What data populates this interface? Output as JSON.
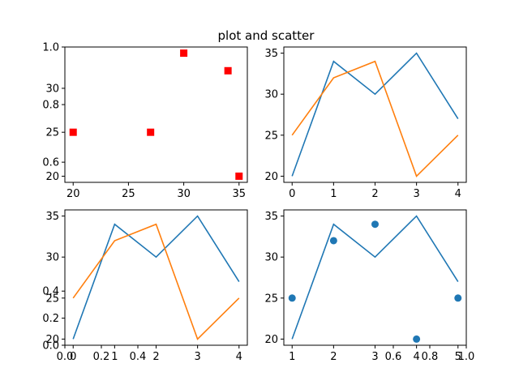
{
  "title": "plot and scatter",
  "colors": {
    "blue": "#1f77b4",
    "orange": "#ff7f0e",
    "red": "#ff0000"
  },
  "chart_data": [
    {
      "position": "top-left",
      "type": "scatter",
      "twin_axes": true,
      "series": [
        {
          "x": [
            20,
            27,
            30,
            34,
            35
          ],
          "y": [
            25,
            25,
            34,
            32,
            20
          ],
          "color": "red",
          "marker": "square"
        }
      ],
      "xlim": [
        19.25,
        35.75
      ],
      "ylim": [
        19.3,
        34.7
      ],
      "xticks": [
        20,
        25,
        30,
        35
      ],
      "yticks": [
        20,
        25,
        30
      ],
      "twin_ylim": [
        0.53,
        1.0
      ],
      "twin_yticks": [
        "0.6",
        "0.8",
        "1.0"
      ]
    },
    {
      "position": "top-right",
      "type": "line",
      "series": [
        {
          "x": [
            0,
            1,
            2,
            3,
            4
          ],
          "y": [
            20,
            34,
            30,
            35,
            27
          ],
          "color": "blue"
        },
        {
          "x": [
            0,
            1,
            2,
            3,
            4
          ],
          "y": [
            25,
            32,
            34,
            20,
            25
          ],
          "color": "orange"
        }
      ],
      "xlim": [
        -0.2,
        4.2
      ],
      "ylim": [
        19.25,
        35.75
      ],
      "xticks": [
        0,
        1,
        2,
        3,
        4
      ],
      "yticks": [
        20,
        25,
        30,
        35
      ]
    },
    {
      "position": "bottom-left",
      "type": "line",
      "twin_axes": true,
      "series": [
        {
          "x": [
            0,
            1,
            2,
            3,
            4
          ],
          "y": [
            20,
            34,
            30,
            35,
            27
          ],
          "color": "blue"
        },
        {
          "x": [
            0,
            1,
            2,
            3,
            4
          ],
          "y": [
            25,
            32,
            34,
            20,
            25
          ],
          "color": "orange"
        }
      ],
      "xlim": [
        -0.2,
        4.2
      ],
      "ylim": [
        19.25,
        35.75
      ],
      "xticks": [
        0,
        1,
        2,
        3,
        4
      ],
      "yticks": [
        20,
        25,
        30,
        35
      ],
      "twin_xticks": [
        "0.0",
        "0.2",
        "0.4"
      ],
      "twin_yticks": [
        "0.0",
        "0.2",
        "0.4"
      ]
    },
    {
      "position": "bottom-right",
      "type": "line+scatter",
      "twin_axes": true,
      "series": [
        {
          "x": [
            0,
            1,
            2,
            3,
            4
          ],
          "y": [
            20,
            34,
            30,
            35,
            27
          ],
          "color": "blue",
          "style": "line"
        },
        {
          "x": [
            0,
            1,
            2,
            3,
            4
          ],
          "y": [
            25,
            32,
            34,
            20,
            25
          ],
          "color": "blue",
          "style": "dots"
        }
      ],
      "xlim": [
        -0.2,
        4.2
      ],
      "ylim": [
        19.25,
        35.75
      ],
      "xticks": [
        "1",
        "2",
        "3",
        "4",
        "5"
      ],
      "yticks": [
        20,
        25,
        30,
        35
      ],
      "twin_xticks": [
        "0.6",
        "0.8",
        "1.0"
      ]
    }
  ]
}
